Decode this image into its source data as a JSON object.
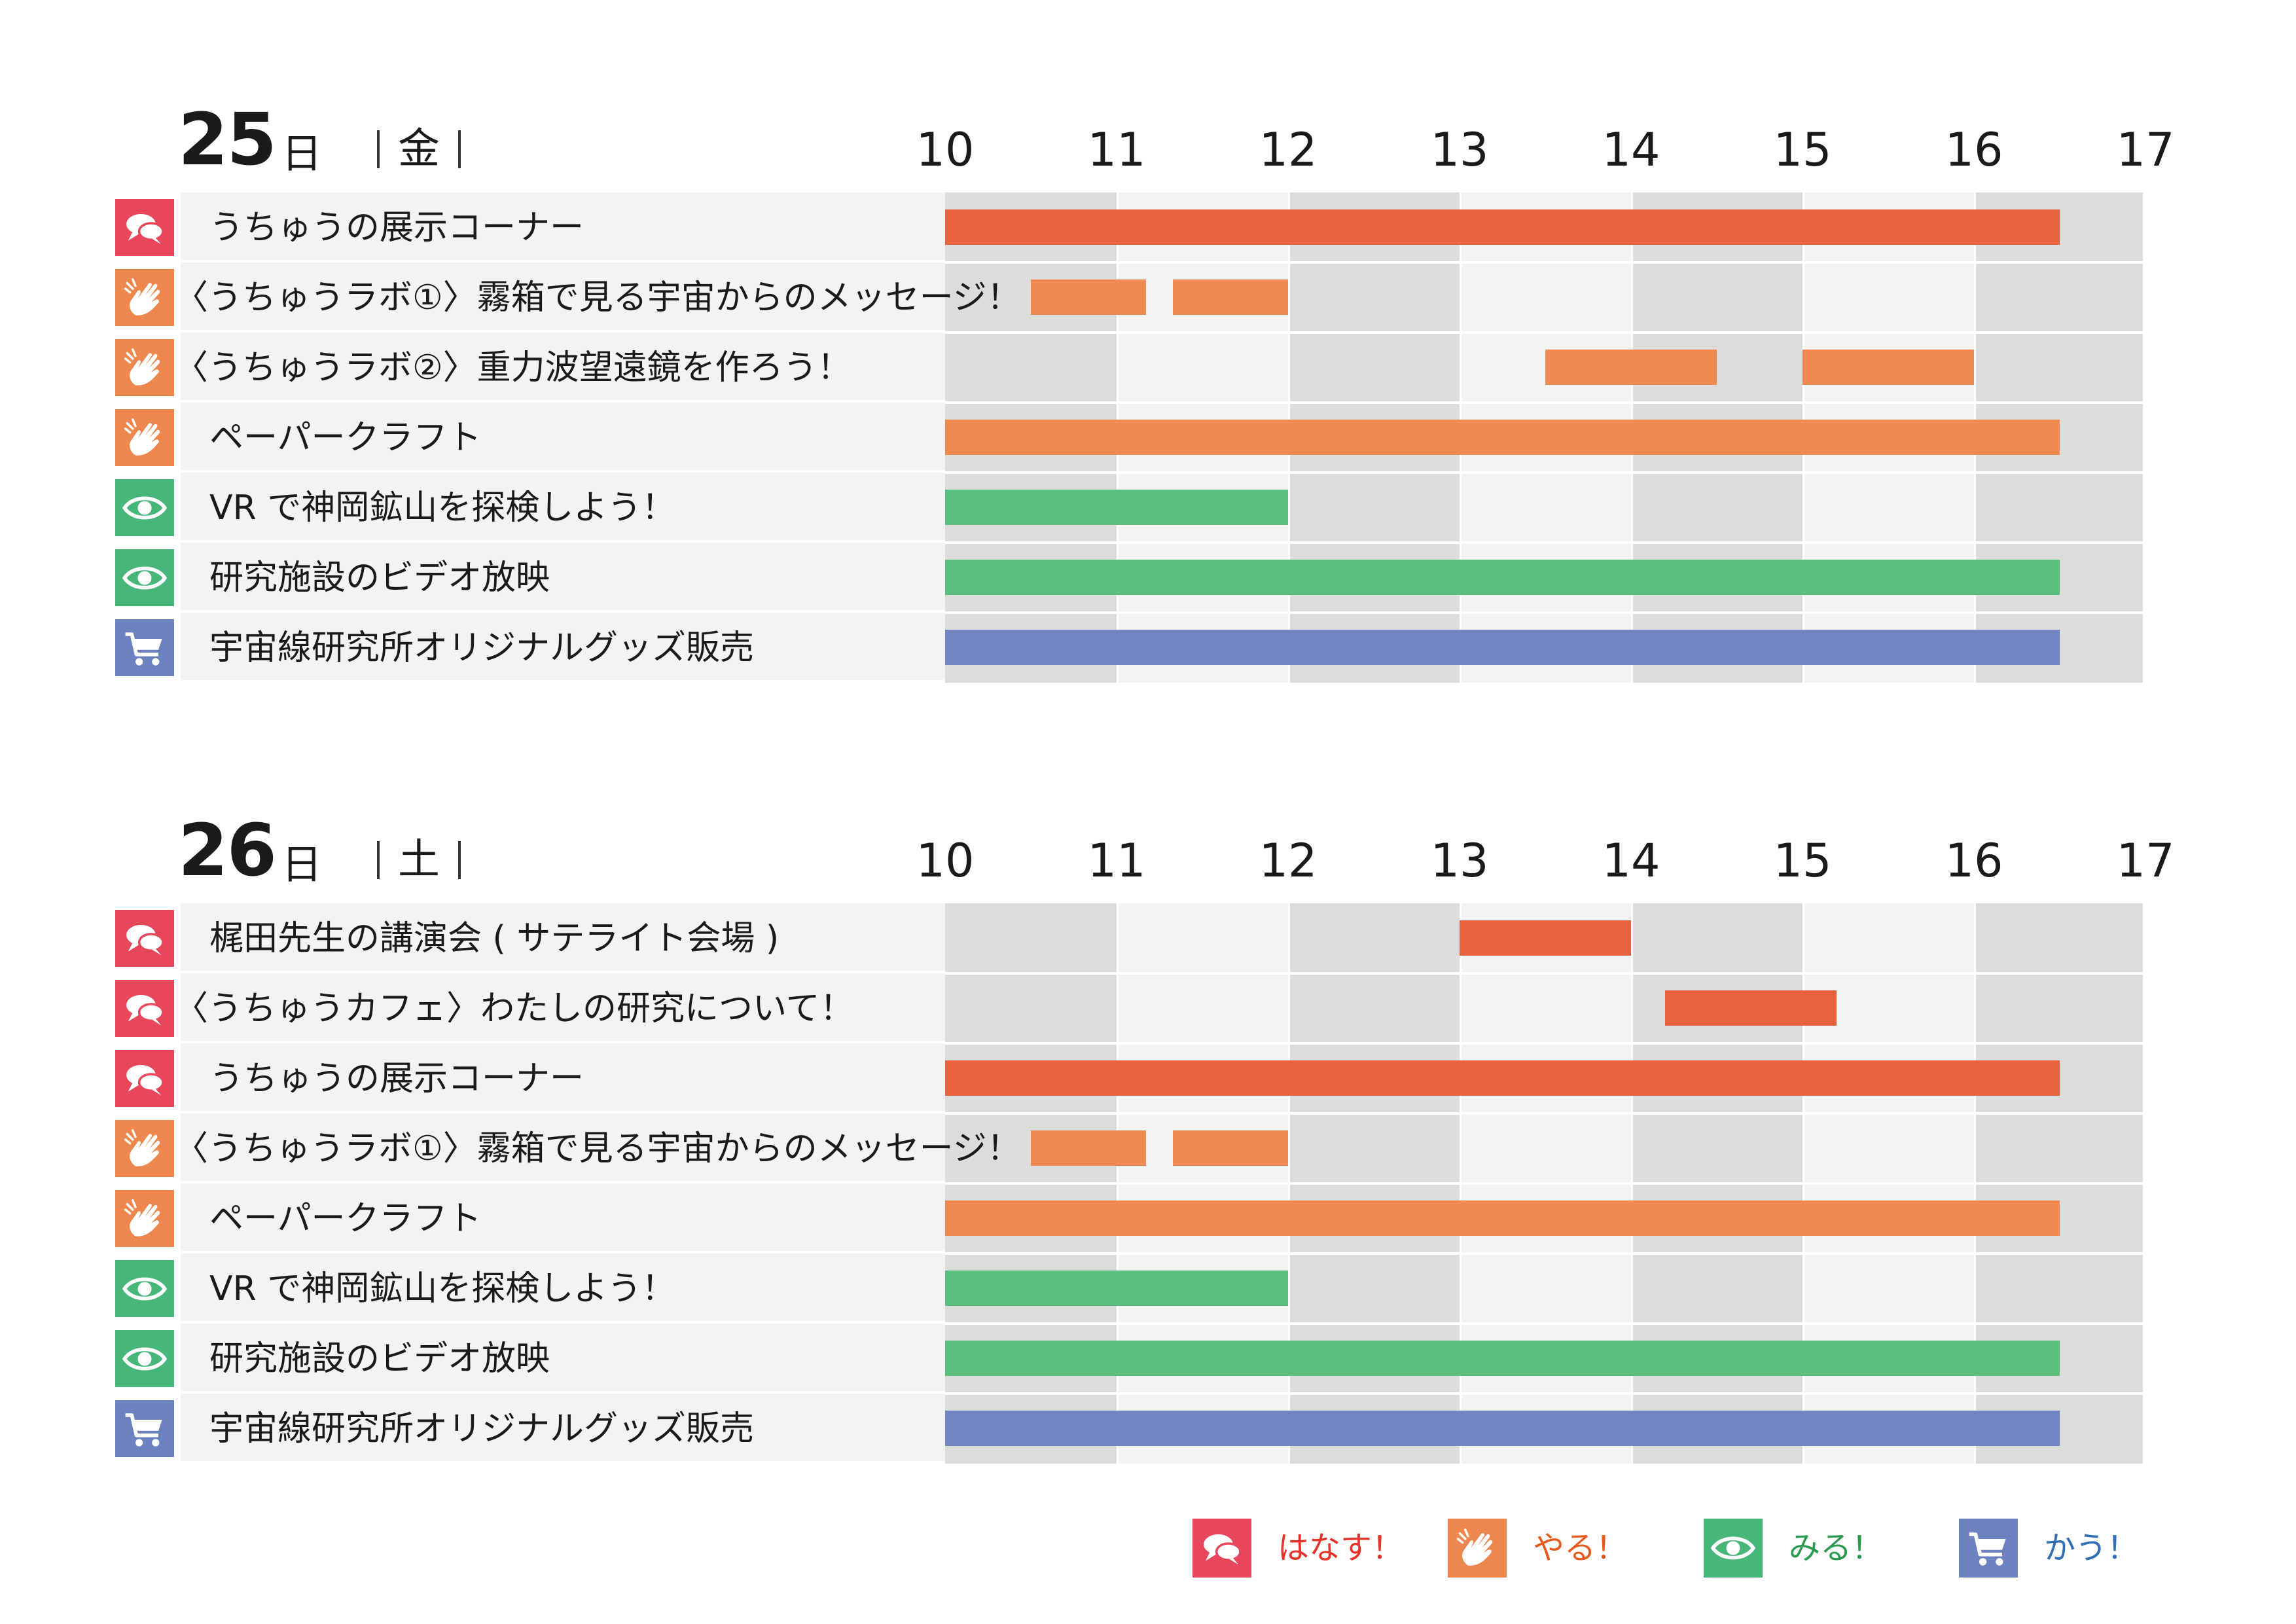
{
  "colors": {
    "talk": "#e8465a",
    "do": "#ee874d",
    "see": "#47b679",
    "buy": "#6b82bf",
    "bar_talk": "#e9623f",
    "bar_do": "#ef8a52",
    "bar_see": "#5bbd7e",
    "bar_buy": "#7285c2",
    "col_dark": "#dcdcdb",
    "col_light": "#f3f3f2"
  },
  "icons": {
    "talk": "speech-bubbles-icon",
    "do": "hand-icon",
    "see": "eye-icon",
    "buy": "cart-icon"
  },
  "hours": [
    "10",
    "11",
    "12",
    "13",
    "14",
    "15",
    "16",
    "17"
  ],
  "days": [
    {
      "number": "25",
      "unit": "日",
      "weekday": "金",
      "events": [
        {
          "title": "うちゅうの展示コーナー",
          "category": "talk",
          "slots": [
            [
              10.0,
              16.5
            ]
          ]
        },
        {
          "title": "〈うちゅうラボ①〉霧箱で見る宇宙からのメッセージ！",
          "category": "do",
          "slots": [
            [
              10.5,
              11.17
            ],
            [
              11.33,
              12.0
            ]
          ]
        },
        {
          "title": "〈うちゅうラボ②〉重力波望遠鏡を作ろう！",
          "category": "do",
          "slots": [
            [
              13.5,
              14.5
            ],
            [
              15.0,
              16.0
            ]
          ]
        },
        {
          "title": "ペーパークラフト",
          "category": "do",
          "slots": [
            [
              10.0,
              16.5
            ]
          ]
        },
        {
          "title": "VR で神岡鉱山を探検しよう！",
          "category": "see",
          "slots": [
            [
              10.0,
              12.0
            ]
          ]
        },
        {
          "title": "研究施設のビデオ放映",
          "category": "see",
          "slots": [
            [
              10.0,
              16.5
            ]
          ]
        },
        {
          "title": "宇宙線研究所オリジナルグッズ販売",
          "category": "buy",
          "slots": [
            [
              10.0,
              16.5
            ]
          ]
        }
      ]
    },
    {
      "number": "26",
      "unit": "日",
      "weekday": "土",
      "events": [
        {
          "title": "梶田先生の講演会 ( サテライト会場 )",
          "category": "talk",
          "slots": [
            [
              13.0,
              14.0
            ]
          ]
        },
        {
          "title": "〈うちゅうカフェ〉わたしの研究について！",
          "category": "talk",
          "slots": [
            [
              14.2,
              15.2
            ]
          ]
        },
        {
          "title": "うちゅうの展示コーナー",
          "category": "talk",
          "slots": [
            [
              10.0,
              16.5
            ]
          ]
        },
        {
          "title": "〈うちゅうラボ①〉霧箱で見る宇宙からのメッセージ！",
          "category": "do",
          "slots": [
            [
              10.5,
              11.17
            ],
            [
              11.33,
              12.0
            ]
          ]
        },
        {
          "title": "ペーパークラフト",
          "category": "do",
          "slots": [
            [
              10.0,
              16.5
            ]
          ]
        },
        {
          "title": "VR で神岡鉱山を探検しよう！",
          "category": "see",
          "slots": [
            [
              10.0,
              12.0
            ]
          ]
        },
        {
          "title": "研究施設のビデオ放映",
          "category": "see",
          "slots": [
            [
              10.0,
              16.5
            ]
          ]
        },
        {
          "title": "宇宙線研究所オリジナルグッズ販売",
          "category": "buy",
          "slots": [
            [
              10.0,
              16.5
            ]
          ]
        }
      ]
    }
  ],
  "legend": [
    {
      "label": "はなす！",
      "category": "talk",
      "text_color": "#e6332a"
    },
    {
      "label": "やる！",
      "category": "do",
      "text_color": "#e8591e"
    },
    {
      "label": "みる！",
      "category": "see",
      "text_color": "#2a9a4f"
    },
    {
      "label": "かう！",
      "category": "buy",
      "text_color": "#2f6eb5"
    }
  ]
}
